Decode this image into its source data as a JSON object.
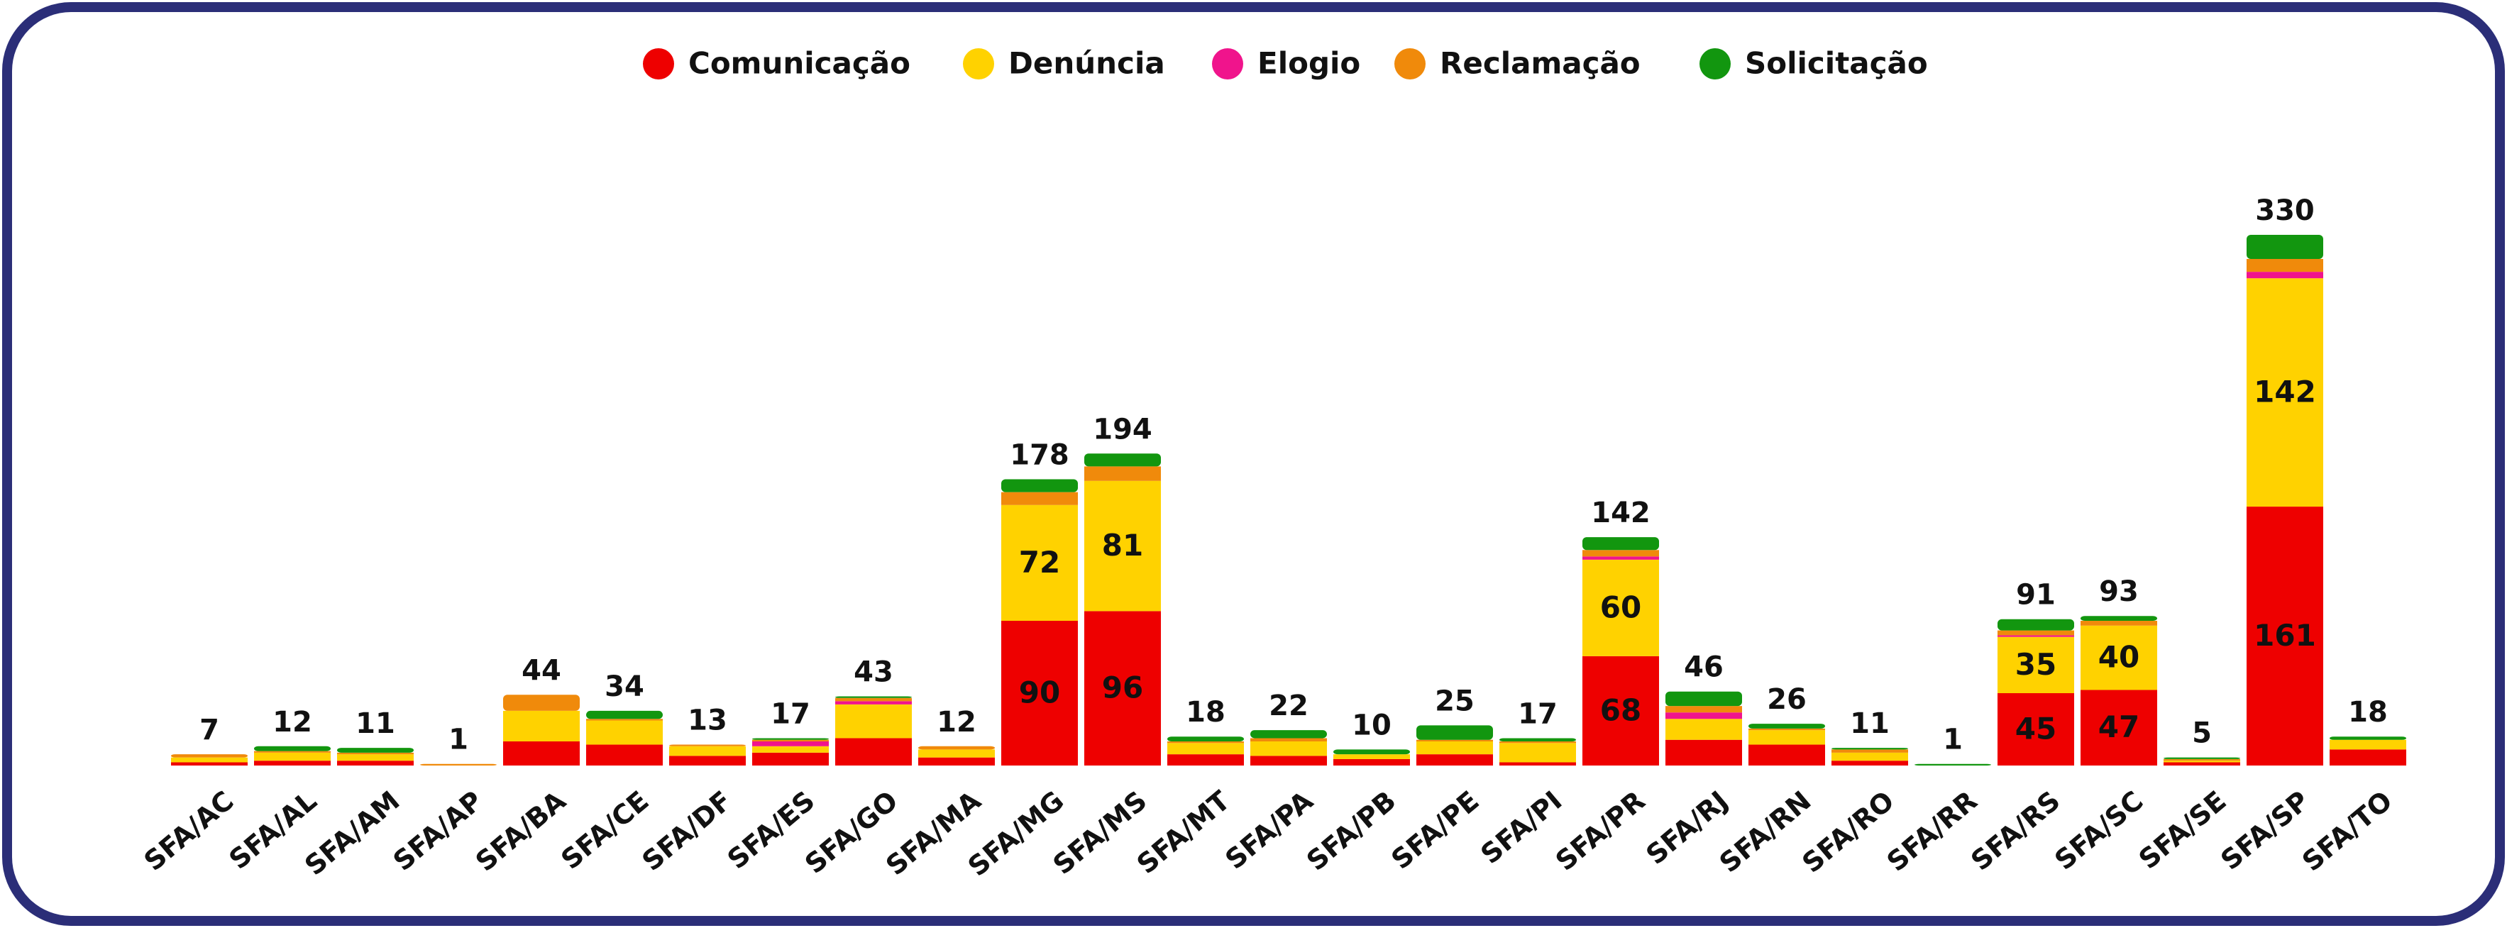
{
  "chart_data": {
    "type": "stacked_bar",
    "categories": [
      "SFA/AC",
      "SFA/AL",
      "SFA/AM",
      "SFA/AP",
      "SFA/BA",
      "SFA/CE",
      "SFA/DF",
      "SFA/ES",
      "SFA/GO",
      "SFA/MA",
      "SFA/MG",
      "SFA/MS",
      "SFA/MT",
      "SFA/PA",
      "SFA/PB",
      "SFA/PE",
      "SFA/PI",
      "SFA/PR",
      "SFA/RJ",
      "SFA/RN",
      "SFA/RO",
      "SFA/RR",
      "SFA/RS",
      "SFA/SC",
      "SFA/SE",
      "SFA/SP",
      "SFA/TO"
    ],
    "series": [
      {
        "name": "Comunicação",
        "color": "#ee0000",
        "values": [
          2,
          3,
          3,
          0,
          15,
          13,
          6,
          8,
          17,
          5,
          90,
          96,
          7,
          6,
          4,
          7,
          2,
          68,
          16,
          13,
          3,
          0,
          45,
          47,
          2,
          161,
          10
        ]
      },
      {
        "name": "Denúncia",
        "color": "#ffd200",
        "values": [
          3,
          5,
          4,
          0,
          19,
          15,
          6,
          4,
          21,
          5,
          72,
          81,
          7,
          9,
          3,
          8,
          12,
          60,
          13,
          9,
          5,
          0,
          35,
          40,
          1,
          142,
          6
        ]
      },
      {
        "name": "Elogio",
        "color": "#f0148c",
        "values": [
          0,
          0,
          0,
          0,
          0,
          0,
          0,
          3,
          2,
          0,
          0,
          0,
          0,
          0,
          0,
          0,
          0,
          2,
          4,
          0,
          0,
          0,
          1,
          0,
          0,
          4,
          0
        ]
      },
      {
        "name": "Reclamação",
        "color": "#f08a0b",
        "values": [
          2,
          1,
          1,
          1,
          10,
          1,
          1,
          1,
          2,
          2,
          8,
          9,
          1,
          2,
          0,
          1,
          1,
          4,
          4,
          1,
          2,
          0,
          3,
          3,
          1,
          8,
          0
        ]
      },
      {
        "name": "Solicitação",
        "color": "#12960f",
        "values": [
          0,
          3,
          3,
          0,
          0,
          5,
          0,
          1,
          1,
          0,
          8,
          8,
          3,
          5,
          3,
          9,
          2,
          8,
          9,
          3,
          1,
          1,
          7,
          3,
          1,
          15,
          2
        ]
      }
    ],
    "totals": [
      7,
      12,
      11,
      1,
      44,
      34,
      13,
      17,
      43,
      12,
      178,
      194,
      18,
      22,
      10,
      25,
      17,
      142,
      46,
      26,
      11,
      1,
      91,
      93,
      5,
      330,
      18
    ],
    "legend": "top"
  }
}
